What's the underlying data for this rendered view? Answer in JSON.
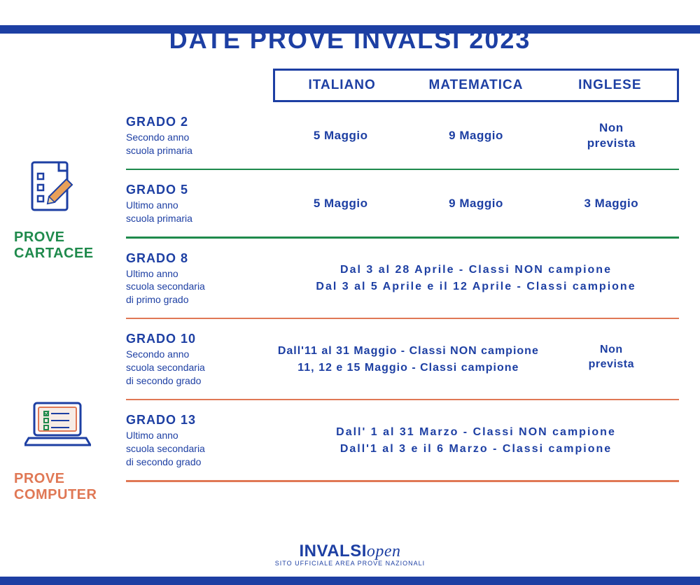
{
  "colors": {
    "brand_blue": "#1d3fa3",
    "green": "#1f8a4c",
    "orange": "#e07855",
    "background": "#ffffff"
  },
  "title": "DATE PROVE INVALSI 2023",
  "subjects": {
    "it": "ITALIANO",
    "mat": "MATEMATICA",
    "eng": "INGLESE"
  },
  "sections": {
    "cartacee": {
      "line1": "PROVE",
      "line2": "CARTACEE"
    },
    "computer": {
      "line1": "PROVE",
      "line2": "COMPUTER"
    }
  },
  "rows": {
    "g2": {
      "title": "GRADO 2",
      "sub": "Secondo anno\nscuola primaria",
      "it": "5 Maggio",
      "mat": "9 Maggio",
      "eng": "Non\nprevista"
    },
    "g5": {
      "title": "GRADO 5",
      "sub": "Ultimo anno\nscuola primaria",
      "it": "5 Maggio",
      "mat": "9 Maggio",
      "eng": "3 Maggio"
    },
    "g8": {
      "title": "GRADO  8",
      "sub": "Ultimo anno\nscuola secondaria\ndi primo grado",
      "line1": "Dal 3 al 28 Aprile - Classi NON campione",
      "line2": "Dal 3 al 5 Aprile e il 12 Aprile - Classi campione"
    },
    "g10": {
      "title": "GRADO 10",
      "sub": "Secondo anno\nscuola secondaria\ndi secondo grado",
      "line1": "Dall'11 al 31 Maggio - Classi NON campione",
      "line2": "11, 12 e 15 Maggio - Classi campione",
      "eng": "Non\nprevista"
    },
    "g13": {
      "title": "GRADO 13",
      "sub": "Ultimo anno\nscuola secondaria\ndi secondo grado",
      "line1": "Dall' 1 al 31 Marzo - Classi NON campione",
      "line2": "Dall'1 al 3 e il 6 Marzo - Classi campione"
    }
  },
  "footer": {
    "brand": "INVALSI",
    "brand_suffix": "open",
    "tagline": "SITO UFFICIALE AREA PROVE NAZIONALI"
  }
}
